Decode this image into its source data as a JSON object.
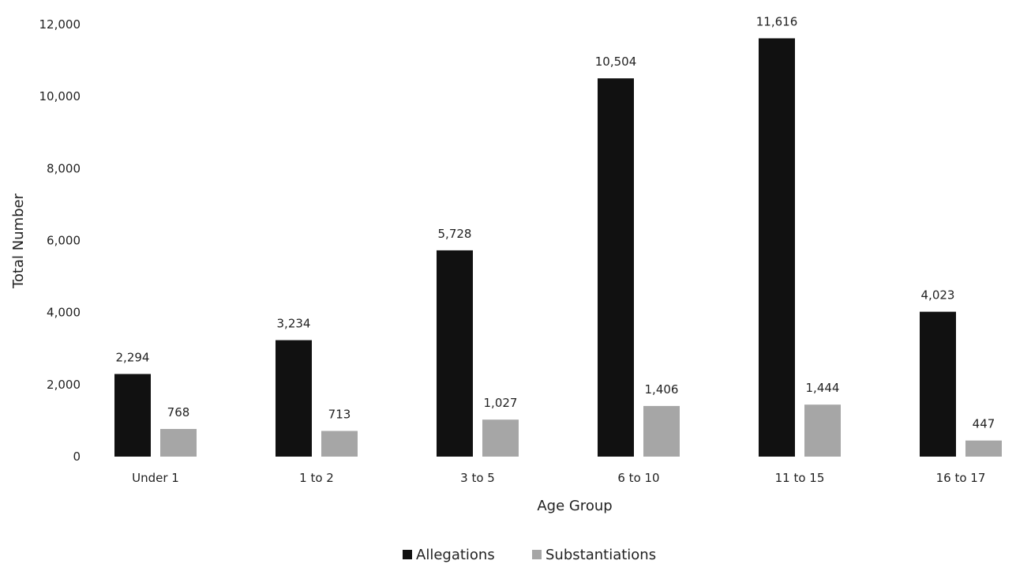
{
  "chart_data": {
    "type": "bar",
    "xlabel": "Age Group",
    "ylabel": "Total Number",
    "ylim": [
      0,
      12000
    ],
    "yticks": [
      0,
      2000,
      4000,
      6000,
      8000,
      10000,
      12000
    ],
    "ytick_labels": [
      "0",
      "2,000",
      "4,000",
      "6,000",
      "8,000",
      "10,000",
      "12,000"
    ],
    "grid": false,
    "legend_position": "bottom",
    "categories": [
      "Under 1",
      "1 to 2",
      "3 to 5",
      "6 to 10",
      "11 to 15",
      "16 to 17"
    ],
    "series": [
      {
        "name": "Allegations",
        "color": "#111111",
        "values": [
          2294,
          3234,
          5728,
          10504,
          11616,
          4023
        ],
        "labels": [
          "2,294",
          "3,234",
          "5,728",
          "10,504",
          "11,616",
          "4,023"
        ]
      },
      {
        "name": "Substantiations",
        "color": "#a6a6a6",
        "values": [
          768,
          713,
          1027,
          1406,
          1444,
          447
        ],
        "labels": [
          "768",
          "713",
          "1,027",
          "1,406",
          "1,444",
          "447"
        ]
      }
    ]
  }
}
